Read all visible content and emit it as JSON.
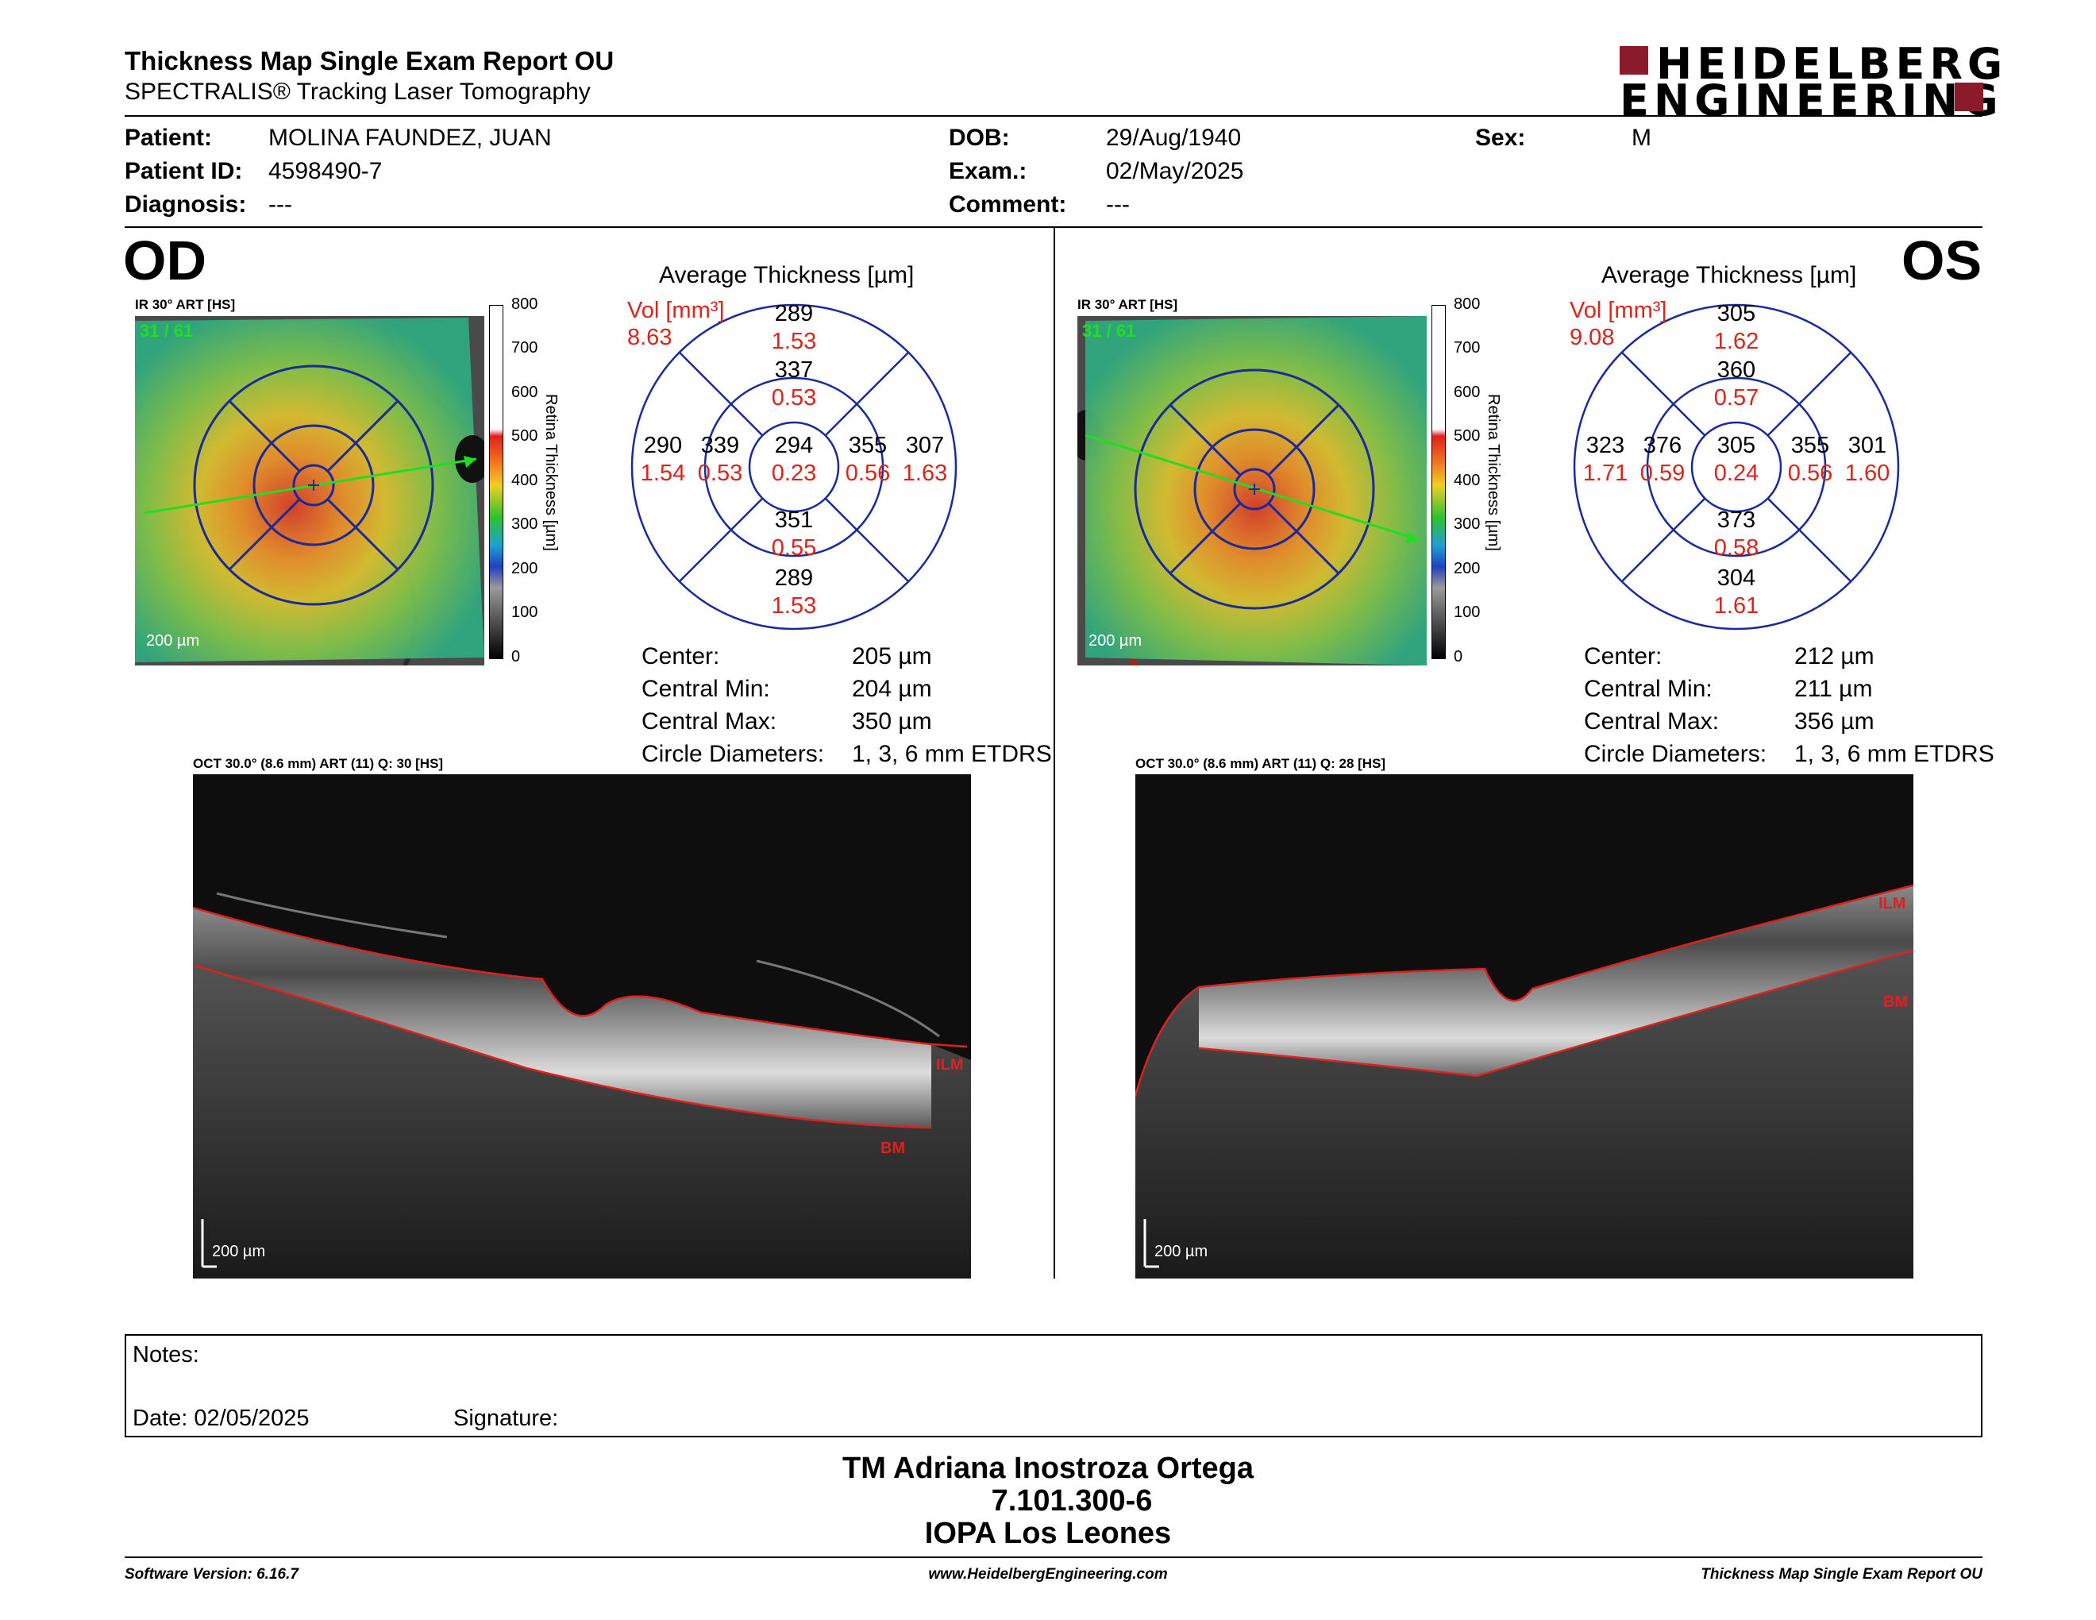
{
  "header": {
    "title": "Thickness Map Single Exam Report OU",
    "subtitle": "SPECTRALIS® Tracking Laser Tomography",
    "logo_line1": "HEIDELBERG",
    "logo_line2": "ENGINEERING"
  },
  "patient": {
    "patient_label": "Patient:",
    "patient_value": "MOLINA FAUNDEZ, JUAN",
    "id_label": "Patient ID:",
    "id_value": "4598490-7",
    "diag_label": "Diagnosis:",
    "diag_value": "---",
    "dob_label": "DOB:",
    "dob_value": "29/Aug/1940",
    "exam_label": "Exam.:",
    "exam_value": "02/May/2025",
    "comment_label": "Comment:",
    "comment_value": "---",
    "sex_label": "Sex:",
    "sex_value": "M"
  },
  "colorbar": {
    "ticks": [
      "800",
      "700",
      "600",
      "500",
      "400",
      "300",
      "200",
      "100",
      "0"
    ],
    "label": "Retina Thickness [µm]"
  },
  "od": {
    "eye": "OD",
    "ir_caption": "IR 30° ART [HS]",
    "frame": "31 / 61",
    "scale": "200 µm",
    "avg_title": "Average Thickness [µm]",
    "vol_label": "Vol [mm³]",
    "vol_value": "8.63",
    "etdrs": {
      "outer_top": [
        "289",
        "1.53"
      ],
      "inner_top": [
        "337",
        "0.53"
      ],
      "outer_left": [
        "290",
        "1.54"
      ],
      "inner_left": [
        "339",
        "0.53"
      ],
      "center": [
        "294",
        "0.23"
      ],
      "inner_right": [
        "355",
        "0.56"
      ],
      "outer_right": [
        "307",
        "1.63"
      ],
      "inner_bottom": [
        "351",
        "0.55"
      ],
      "outer_bottom": [
        "289",
        "1.53"
      ]
    },
    "stats": {
      "center_label": "Center:",
      "center_value": "205 µm",
      "min_label": "Central Min:",
      "min_value": "204 µm",
      "max_label": "Central Max:",
      "max_value": "350 µm",
      "diam_label": "Circle Diameters:",
      "diam_value": "1, 3, 6 mm ETDRS"
    },
    "oct_caption": "OCT 30.0° (8.6 mm) ART (11) Q: 30 [HS]",
    "ilm": "ILM",
    "bm": "BM"
  },
  "os": {
    "eye": "OS",
    "ir_caption": "IR 30° ART [HS]",
    "frame": "31 / 61",
    "scale": "200 µm",
    "avg_title": "Average Thickness [µm]",
    "vol_label": "Vol [mm³]",
    "vol_value": "9.08",
    "etdrs": {
      "outer_top": [
        "305",
        "1.62"
      ],
      "inner_top": [
        "360",
        "0.57"
      ],
      "outer_left": [
        "323",
        "1.71"
      ],
      "inner_left": [
        "376",
        "0.59"
      ],
      "center": [
        "305",
        "0.24"
      ],
      "inner_right": [
        "355",
        "0.56"
      ],
      "outer_right": [
        "301",
        "1.60"
      ],
      "inner_bottom": [
        "373",
        "0.58"
      ],
      "outer_bottom": [
        "304",
        "1.61"
      ]
    },
    "stats": {
      "center_label": "Center:",
      "center_value": "212 µm",
      "min_label": "Central Min:",
      "min_value": "211 µm",
      "max_label": "Central Max:",
      "max_value": "356 µm",
      "diam_label": "Circle Diameters:",
      "diam_value": "1, 3, 6 mm ETDRS"
    },
    "oct_caption": "OCT 30.0° (8.6 mm) ART (11) Q: 28 [HS]",
    "ilm": "ILM",
    "bm": "BM"
  },
  "notes": {
    "notes_label": "Notes:",
    "date_label": "Date: 02/05/2025",
    "signature_label": "Signature:"
  },
  "signature": {
    "name": "TM Adriana Inostroza Ortega",
    "rut": "7.101.300-6",
    "clinic": "IOPA Los Leones"
  },
  "footer": {
    "software": "Software Version: 6.16.7",
    "url": "www.HeidelbergEngineering.com",
    "report": "Thickness Map Single Exam Report OU"
  },
  "colors": {
    "accent_red": "#d9261c",
    "grid_blue": "#1a2a9a",
    "brand": "#8b1a2b"
  }
}
